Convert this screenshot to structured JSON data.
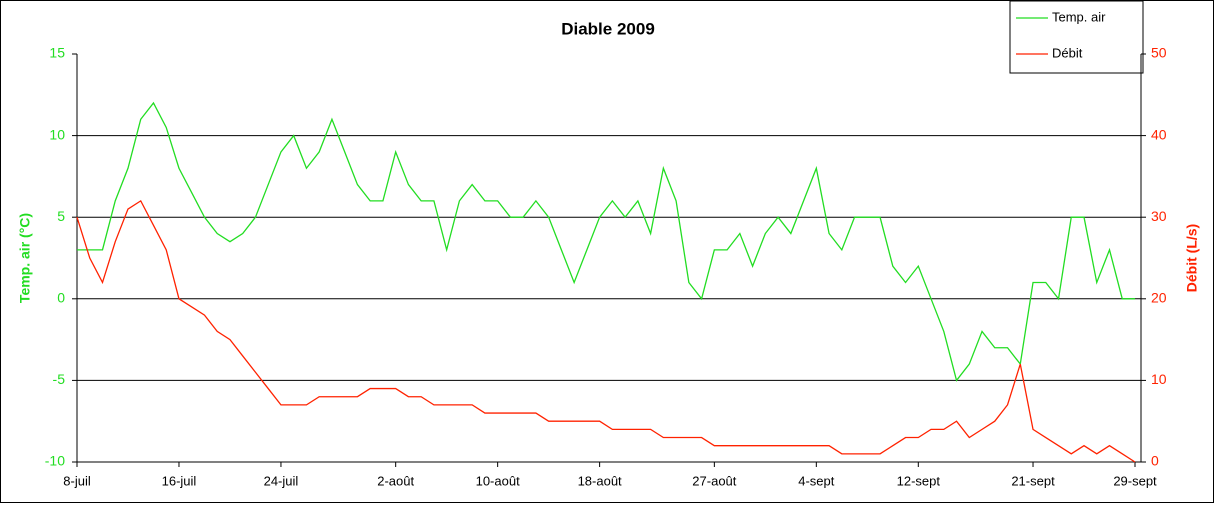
{
  "chart_data": {
    "type": "line",
    "title": "Diable 2009",
    "ylabel": "Temp. air (°C)",
    "y2label": "Débit (L/s)",
    "x": [
      0,
      1,
      2,
      3,
      4,
      5,
      6,
      7,
      8,
      9,
      10,
      11,
      12,
      13,
      14,
      15,
      16,
      17,
      18,
      19,
      20,
      21,
      22,
      23,
      24,
      25,
      26,
      27,
      28,
      29,
      30,
      31,
      32,
      33,
      34,
      35,
      36,
      37,
      38,
      39,
      40,
      41,
      42,
      43,
      44,
      45,
      46,
      47,
      48,
      49,
      50,
      51,
      52,
      53,
      54,
      55,
      56,
      57,
      58,
      59,
      60,
      61,
      62,
      63,
      64,
      65,
      66,
      67,
      68,
      69,
      70,
      71,
      72,
      73,
      74,
      75,
      76,
      77,
      78,
      79,
      80,
      81,
      82,
      83
    ],
    "xlim": [
      0,
      83
    ],
    "xticks": [
      {
        "value": 0,
        "label": "8-juil"
      },
      {
        "value": 8,
        "label": "16-juil"
      },
      {
        "value": 16,
        "label": "24-juil"
      },
      {
        "value": 25,
        "label": "2-août"
      },
      {
        "value": 33,
        "label": "10-août"
      },
      {
        "value": 41,
        "label": "18-août"
      },
      {
        "value": 50,
        "label": "27-août"
      },
      {
        "value": 58,
        "label": "4-sept"
      },
      {
        "value": 66,
        "label": "12-sept"
      },
      {
        "value": 75,
        "label": "21-sept"
      },
      {
        "value": 83,
        "label": "29-sept"
      }
    ],
    "ylim": [
      -10,
      15
    ],
    "yticks": [
      -10,
      -5,
      0,
      5,
      10,
      15
    ],
    "y2lim": [
      0,
      50
    ],
    "y2ticks": [
      0,
      10,
      20,
      30,
      40,
      50
    ],
    "grid": true,
    "legend": "upper right",
    "series": [
      {
        "name": "Temp. air",
        "color": "#22dd22",
        "values": [
          3,
          3,
          3,
          6,
          8,
          11,
          12,
          10.5,
          8,
          6.5,
          5,
          4,
          3.5,
          4,
          5,
          7,
          9,
          10,
          8,
          9,
          11,
          9,
          7,
          6,
          6,
          9,
          7,
          6,
          6,
          3,
          6,
          7,
          6,
          6,
          5,
          5,
          6,
          5,
          3,
          1,
          3,
          5,
          6,
          5,
          6,
          4,
          8,
          6,
          1,
          0,
          3,
          3,
          4,
          2,
          4,
          5,
          4,
          6,
          8,
          4,
          3,
          5,
          5,
          5,
          2,
          1,
          2,
          0,
          -2,
          -5,
          -4,
          -2,
          -3,
          -3,
          -4,
          1,
          1,
          0,
          5,
          5,
          1,
          3,
          0,
          0
        ]
      },
      {
        "name": "Débit",
        "color": "#ff2200",
        "axis": "y2",
        "values": [
          30,
          25,
          22,
          27,
          31,
          32,
          29,
          26,
          20,
          19,
          18,
          16,
          15,
          13,
          11,
          9,
          7,
          7,
          7,
          8,
          8,
          8,
          8,
          9,
          9,
          9,
          8,
          8,
          7,
          7,
          7,
          7,
          6,
          6,
          6,
          6,
          6,
          5,
          5,
          5,
          5,
          5,
          4,
          4,
          4,
          4,
          3,
          3,
          3,
          3,
          2,
          2,
          2,
          2,
          2,
          2,
          2,
          2,
          2,
          2,
          1,
          1,
          1,
          1,
          2,
          3,
          3,
          4,
          4,
          5,
          3,
          4,
          5,
          7,
          12,
          4,
          3,
          2,
          1,
          2,
          1,
          2,
          1,
          0
        ]
      }
    ]
  }
}
